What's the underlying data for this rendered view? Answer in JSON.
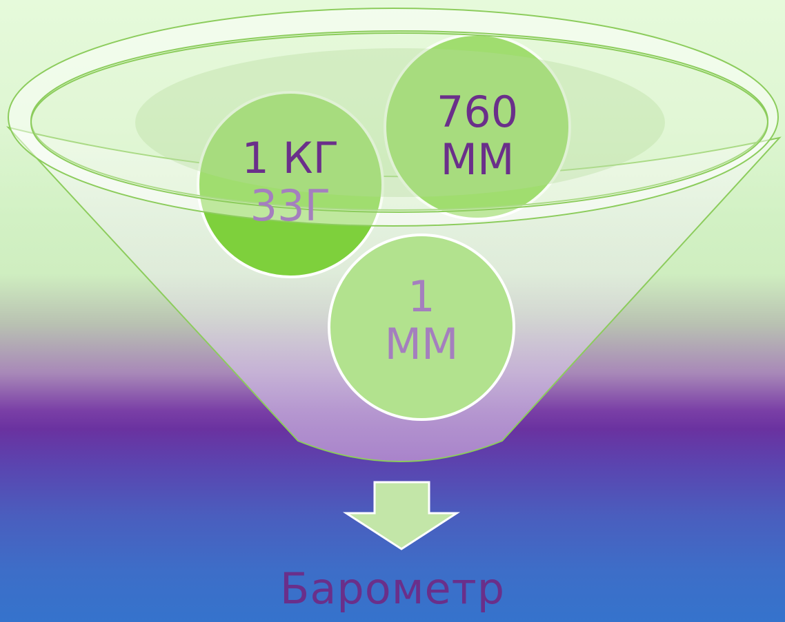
{
  "bubbles": [
    {
      "line1": "1 КГ",
      "line2": "33Г"
    },
    {
      "line1": "760",
      "line2": "ММ"
    },
    {
      "line1": "1",
      "line2": "ММ"
    }
  ],
  "result": "Барометр",
  "colors": {
    "bubble_front": "#7ed03c",
    "bubble_back": "#b2e28e",
    "text_dark": "#6a2f8a",
    "text_faded": "#a47fbe",
    "arrow_fill": "#c3e6a8",
    "funnel_stroke": "#8ccc5c"
  }
}
